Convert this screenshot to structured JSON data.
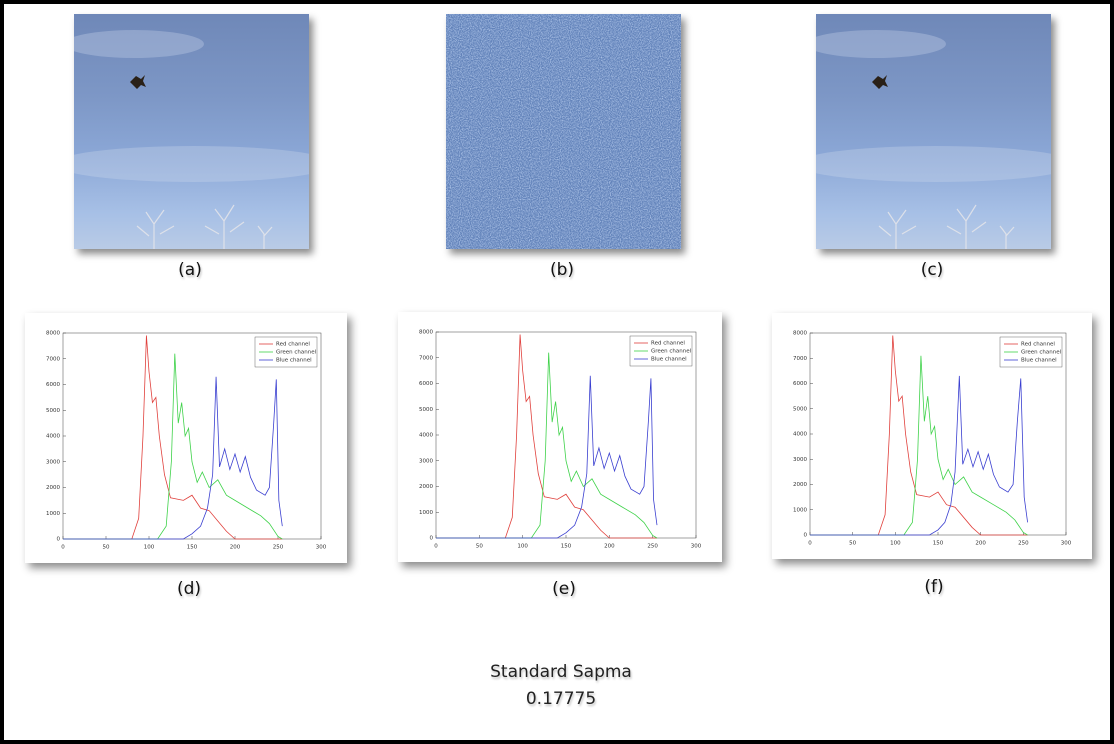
{
  "figure_labels": [
    "(a)",
    "(b)",
    "(c)",
    "(d)",
    "(e)",
    "(f)"
  ],
  "caption": {
    "title": "Standard Sapma",
    "value": 0.17775
  },
  "chart_data": [
    {
      "type": "line",
      "legend": "upper right",
      "xlim": [
        0,
        300
      ],
      "xticks": [
        0,
        50,
        100,
        150,
        200,
        250,
        300
      ],
      "ylim": [
        0,
        8000
      ],
      "yticks": [
        0,
        1000,
        2000,
        3000,
        4000,
        5000,
        6000,
        7000,
        8000
      ],
      "series": [
        {
          "name": "Red channel",
          "color": "#e0403c",
          "x": [
            0,
            80,
            88,
            93,
            97,
            100,
            104,
            108,
            112,
            118,
            125,
            140,
            150,
            160,
            170,
            180,
            190,
            200,
            255
          ],
          "values": [
            0,
            0,
            800,
            4000,
            7900,
            6500,
            5300,
            5500,
            4000,
            2500,
            1600,
            1500,
            1700,
            1200,
            1100,
            700,
            300,
            0,
            0
          ]
        },
        {
          "name": "Green channel",
          "color": "#3fd24a",
          "x": [
            0,
            110,
            120,
            126,
            130,
            134,
            138,
            142,
            146,
            150,
            156,
            162,
            170,
            180,
            190,
            200,
            215,
            230,
            240,
            250,
            255
          ],
          "values": [
            0,
            0,
            500,
            3000,
            7200,
            4500,
            5300,
            4000,
            4300,
            3000,
            2200,
            2600,
            2000,
            2300,
            1700,
            1500,
            1200,
            900,
            600,
            100,
            0
          ]
        },
        {
          "name": "Blue channel",
          "color": "#3a3fd0",
          "x": [
            0,
            140,
            150,
            160,
            168,
            174,
            178,
            182,
            188,
            194,
            200,
            206,
            212,
            218,
            225,
            235,
            240,
            245,
            248,
            251,
            255
          ],
          "values": [
            0,
            0,
            200,
            500,
            1200,
            2500,
            6300,
            2800,
            3500,
            2700,
            3300,
            2600,
            3200,
            2400,
            1900,
            1700,
            2000,
            4500,
            6200,
            1500,
            500
          ]
        }
      ]
    },
    {
      "type": "line",
      "legend": "upper right",
      "xlim": [
        0,
        300
      ],
      "xticks": [
        0,
        50,
        100,
        150,
        200,
        250,
        300
      ],
      "ylim": [
        0,
        8000
      ],
      "yticks": [
        0,
        1000,
        2000,
        3000,
        4000,
        5000,
        6000,
        7000,
        8000
      ],
      "series": [
        {
          "name": "Red channel",
          "color": "#e0403c",
          "x": [
            0,
            80,
            88,
            93,
            97,
            100,
            104,
            108,
            112,
            118,
            125,
            140,
            150,
            160,
            170,
            180,
            190,
            200,
            255
          ],
          "values": [
            0,
            0,
            800,
            4000,
            7900,
            6500,
            5300,
            5500,
            4000,
            2500,
            1600,
            1500,
            1700,
            1200,
            1100,
            700,
            300,
            0,
            0
          ]
        },
        {
          "name": "Green channel",
          "color": "#3fd24a",
          "x": [
            0,
            110,
            120,
            126,
            130,
            134,
            138,
            142,
            146,
            150,
            156,
            162,
            170,
            180,
            190,
            200,
            215,
            230,
            240,
            250,
            255
          ],
          "values": [
            0,
            0,
            500,
            3000,
            7200,
            4500,
            5300,
            4000,
            4300,
            3000,
            2200,
            2600,
            2000,
            2300,
            1700,
            1500,
            1200,
            900,
            600,
            100,
            0
          ]
        },
        {
          "name": "Blue channel",
          "color": "#3a3fd0",
          "x": [
            0,
            140,
            150,
            160,
            168,
            174,
            178,
            182,
            188,
            194,
            200,
            206,
            212,
            218,
            225,
            235,
            240,
            245,
            248,
            251,
            255
          ],
          "values": [
            0,
            0,
            200,
            500,
            1200,
            2500,
            6300,
            2800,
            3500,
            2700,
            3300,
            2600,
            3200,
            2400,
            1900,
            1700,
            2000,
            4500,
            6200,
            1500,
            500
          ]
        }
      ]
    },
    {
      "type": "line",
      "legend": "upper right",
      "xlim": [
        0,
        300
      ],
      "xticks": [
        0,
        50,
        100,
        150,
        200,
        250,
        300
      ],
      "ylim": [
        0,
        8000
      ],
      "yticks": [
        0,
        1000,
        2000,
        3000,
        4000,
        5000,
        6000,
        7000,
        8000
      ],
      "series": [
        {
          "name": "Red channel",
          "color": "#e0403c",
          "x": [
            0,
            80,
            88,
            93,
            97,
            100,
            104,
            108,
            112,
            118,
            125,
            140,
            150,
            160,
            170,
            180,
            190,
            200,
            255
          ],
          "values": [
            0,
            0,
            800,
            4000,
            7900,
            6500,
            5300,
            5500,
            4000,
            2500,
            1600,
            1500,
            1700,
            1200,
            1100,
            700,
            300,
            0,
            0
          ]
        },
        {
          "name": "Green channel",
          "color": "#3fd24a",
          "x": [
            0,
            110,
            120,
            126,
            130,
            134,
            138,
            142,
            146,
            150,
            156,
            162,
            170,
            180,
            190,
            200,
            215,
            230,
            240,
            250,
            255
          ],
          "values": [
            0,
            0,
            500,
            3000,
            7100,
            4500,
            5500,
            4000,
            4300,
            3000,
            2200,
            2600,
            2000,
            2300,
            1700,
            1500,
            1200,
            900,
            600,
            100,
            0
          ]
        },
        {
          "name": "Blue channel",
          "color": "#3a3fd0",
          "x": [
            0,
            140,
            150,
            158,
            165,
            170,
            175,
            179,
            185,
            191,
            197,
            203,
            209,
            215,
            222,
            232,
            238,
            243,
            247,
            251,
            255
          ],
          "values": [
            0,
            0,
            200,
            500,
            1200,
            2500,
            6300,
            2800,
            3400,
            2700,
            3300,
            2600,
            3200,
            2400,
            1900,
            1700,
            2000,
            4500,
            6200,
            1500,
            500
          ]
        }
      ]
    }
  ]
}
